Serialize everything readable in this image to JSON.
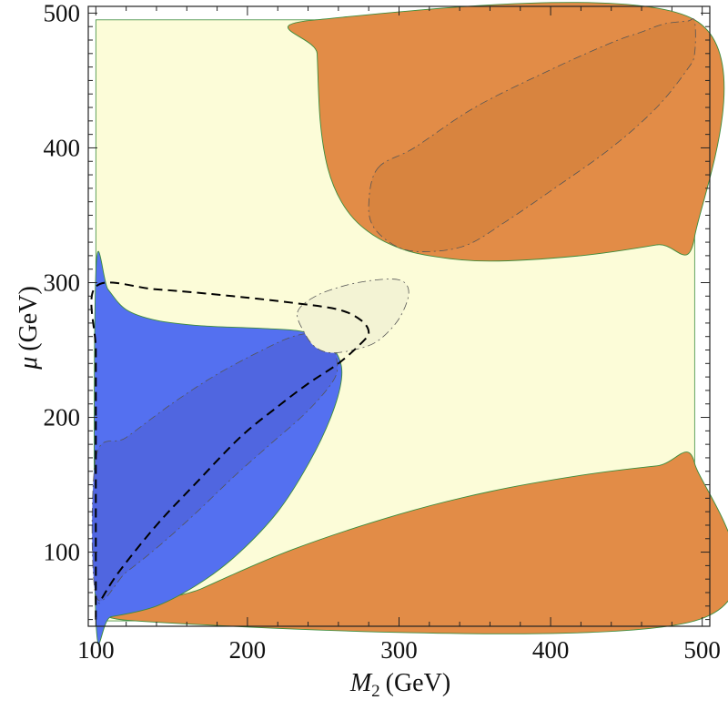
{
  "chart_data": {
    "type": "contour",
    "title": "",
    "xlabel": {
      "symbol": "M",
      "subscript": "2",
      "unit": "(GeV)"
    },
    "ylabel": {
      "symbol": "μ",
      "unit": "(GeV)"
    },
    "xlim": [
      95,
      505
    ],
    "ylim": [
      45,
      505
    ],
    "data_xlim": [
      100,
      495
    ],
    "data_ylim": [
      49,
      495
    ],
    "xticks": [
      100,
      200,
      300,
      400,
      500
    ],
    "yticks": [
      100,
      200,
      300,
      400,
      500
    ],
    "xtick_labels": [
      "100",
      "200",
      "300",
      "400",
      "500"
    ],
    "ytick_labels": [
      "100",
      "200",
      "300",
      "400",
      "500"
    ],
    "grid": false,
    "colors": {
      "background_region": "#fcfcd8",
      "orange_region": "#e28c47",
      "orange_inner_region": "#d8843f",
      "blue_region": "#5470f0",
      "blue_inner_region": "#5066e0",
      "light_blob": "#f3f3d4",
      "region_edge": "#3c8c3c"
    },
    "regions": [
      {
        "name": "upper-right-orange",
        "fill": "orange_region",
        "boundary": [
          [
            245,
            495
          ],
          [
            246,
            470
          ],
          [
            248,
            420
          ],
          [
            253,
            385
          ],
          [
            262,
            360
          ],
          [
            275,
            342
          ],
          [
            295,
            328
          ],
          [
            320,
            320
          ],
          [
            360,
            316
          ],
          [
            420,
            320
          ],
          [
            470,
            328
          ],
          [
            495,
            334
          ],
          [
            495,
            495
          ]
        ]
      },
      {
        "name": "lower-orange",
        "fill": "orange_region",
        "boundary": [
          [
            126,
            49
          ],
          [
            170,
            73
          ],
          [
            230,
            102
          ],
          [
            300,
            128
          ],
          [
            360,
            145
          ],
          [
            420,
            157
          ],
          [
            470,
            164
          ],
          [
            495,
            166
          ],
          [
            495,
            49
          ]
        ]
      },
      {
        "name": "blue-region",
        "fill": "blue_region",
        "boundary": [
          [
            100,
            307
          ],
          [
            108,
            295
          ],
          [
            120,
            280
          ],
          [
            140,
            272
          ],
          [
            170,
            268
          ],
          [
            210,
            266
          ],
          [
            235,
            264
          ],
          [
            250,
            258
          ],
          [
            260,
            245
          ],
          [
            262,
            228
          ],
          [
            255,
            200
          ],
          [
            240,
            165
          ],
          [
            220,
            130
          ],
          [
            195,
            100
          ],
          [
            170,
            78
          ],
          [
            140,
            60
          ],
          [
            110,
            52
          ],
          [
            100,
            51
          ]
        ]
      },
      {
        "name": "upper-right-inner",
        "fill": "orange_inner_region",
        "dashed": true,
        "boundary": [
          [
            286,
            385
          ],
          [
            310,
            400
          ],
          [
            350,
            430
          ],
          [
            400,
            458
          ],
          [
            440,
            478
          ],
          [
            460,
            486
          ],
          [
            475,
            492
          ],
          [
            490,
            494
          ],
          [
            495,
            494
          ],
          [
            495,
            470
          ],
          [
            490,
            458
          ],
          [
            470,
            430
          ],
          [
            440,
            400
          ],
          [
            400,
            368
          ],
          [
            370,
            345
          ],
          [
            345,
            328
          ],
          [
            320,
            323
          ],
          [
            300,
            326
          ],
          [
            284,
            340
          ],
          [
            280,
            358
          ]
        ]
      },
      {
        "name": "blue-inner",
        "fill": "blue_inner_region",
        "dashed": true,
        "boundary": [
          [
            100,
            170
          ],
          [
            120,
            185
          ],
          [
            150,
            210
          ],
          [
            180,
            232
          ],
          [
            210,
            250
          ],
          [
            230,
            260
          ],
          [
            245,
            262
          ],
          [
            255,
            255
          ],
          [
            259,
            242
          ],
          [
            257,
            228
          ],
          [
            240,
            205
          ],
          [
            215,
            180
          ],
          [
            190,
            155
          ],
          [
            165,
            128
          ],
          [
            140,
            103
          ],
          [
            120,
            85
          ],
          [
            100,
            68
          ]
        ]
      },
      {
        "name": "center-light-blob",
        "fill": "light_blob",
        "dashed": true,
        "boundary": [
          [
            233,
            278
          ],
          [
            245,
            290
          ],
          [
            265,
            298
          ],
          [
            285,
            302
          ],
          [
            300,
            302
          ],
          [
            306,
            296
          ],
          [
            305,
            285
          ],
          [
            298,
            270
          ],
          [
            285,
            256
          ],
          [
            270,
            250
          ],
          [
            255,
            248
          ],
          [
            245,
            252
          ],
          [
            238,
            262
          ]
        ]
      }
    ],
    "dashed_curves": [
      {
        "name": "thick-dashed-curve",
        "points": [
          [
            100,
            50
          ],
          [
            100,
            100
          ],
          [
            100,
            150
          ],
          [
            100,
            200
          ],
          [
            100,
            250
          ],
          [
            100,
            297
          ],
          [
            140,
            295
          ],
          [
            190,
            290
          ],
          [
            230,
            285
          ],
          [
            260,
            280
          ],
          [
            275,
            272
          ],
          [
            280,
            263
          ],
          [
            275,
            255
          ],
          [
            260,
            240
          ],
          [
            240,
            225
          ],
          [
            220,
            208
          ],
          [
            195,
            185
          ],
          [
            165,
            150
          ],
          [
            140,
            120
          ],
          [
            115,
            85
          ],
          [
            102,
            62
          ]
        ]
      }
    ]
  }
}
